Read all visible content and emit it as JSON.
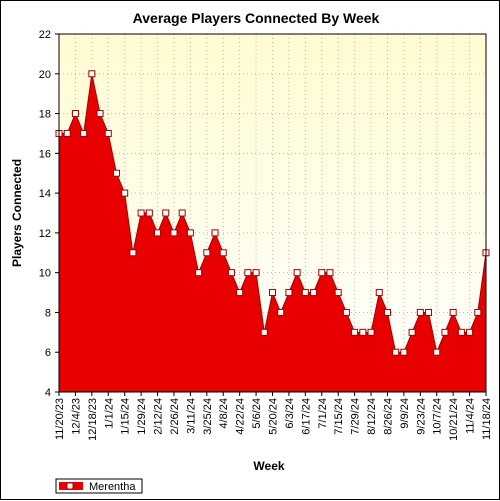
{
  "chart_data": {
    "type": "area",
    "title": "Average Players Connected By Week",
    "xlabel": "Week",
    "ylabel": "Players Connected",
    "ylim": [
      4,
      22
    ],
    "y_ticks": [
      4,
      6,
      8,
      10,
      12,
      14,
      16,
      18,
      20,
      22
    ],
    "x_tick_labels": [
      "11/20/23",
      "12/4/23",
      "12/18/23",
      "1/1/24",
      "1/15/24",
      "1/29/24",
      "2/12/24",
      "2/26/24",
      "3/11/24",
      "3/25/24",
      "4/8/24",
      "4/22/24",
      "5/6/24",
      "5/20/24",
      "6/3/24",
      "6/17/24",
      "7/1/24",
      "7/15/24",
      "7/29/24",
      "8/12/24",
      "8/26/24",
      "9/9/24",
      "9/23/24",
      "10/7/24",
      "10/21/24",
      "11/4/24",
      "11/18/24"
    ],
    "grid": true,
    "legend_position": "bottom-left",
    "colors": {
      "fill": "#e80000",
      "line": "#a00000",
      "plot_bg_top": "#fffcd2",
      "plot_bg_bottom": "#ffffff",
      "marker_fill": "#ffffff"
    },
    "series": [
      {
        "name": "Merentha",
        "values": [
          17,
          17,
          18,
          17,
          20,
          18,
          17,
          15,
          14,
          11,
          13,
          13,
          12,
          13,
          12,
          13,
          12,
          10,
          11,
          12,
          11,
          10,
          9,
          10,
          10,
          7,
          9,
          8,
          9,
          10,
          9,
          9,
          10,
          10,
          9,
          8,
          7,
          7,
          7,
          9,
          8,
          6,
          6,
          7,
          8,
          8,
          6,
          7,
          8,
          7,
          7,
          8,
          11
        ]
      }
    ]
  }
}
